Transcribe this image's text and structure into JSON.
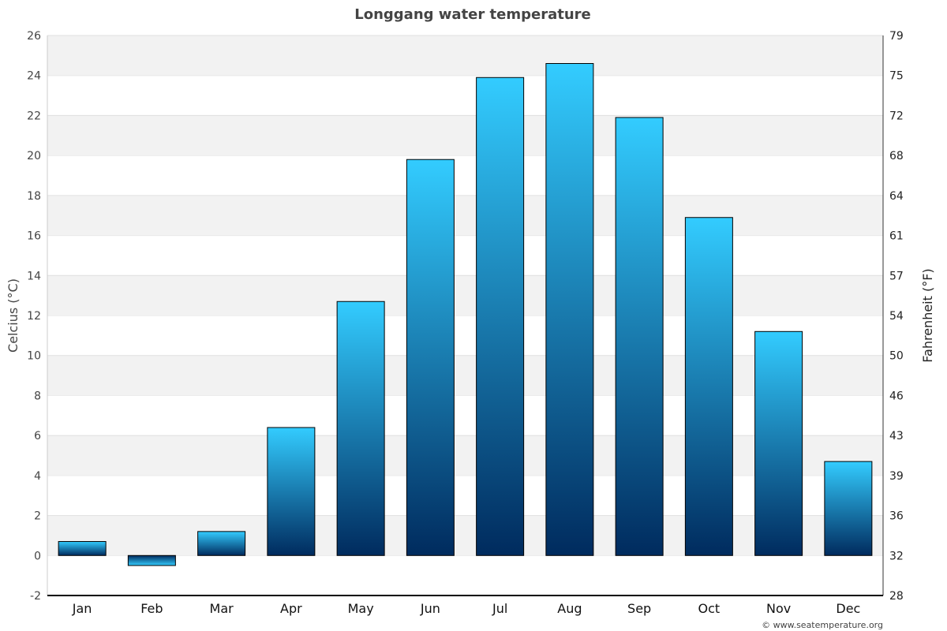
{
  "chart_data": {
    "type": "bar",
    "title": "Longgang water temperature",
    "ylabel": "Celcius (°C)",
    "y2label": "Fahrenheit (°F)",
    "ylim": [
      -2,
      26
    ],
    "yticks": [
      -2,
      0,
      2,
      4,
      6,
      8,
      10,
      12,
      14,
      16,
      18,
      20,
      22,
      24,
      26
    ],
    "y2ticks": [
      "28",
      "32",
      "36",
      "39",
      "43",
      "46",
      "50",
      "54",
      "57",
      "61",
      "64",
      "68",
      "72",
      "75",
      "79"
    ],
    "categories": [
      "Jan",
      "Feb",
      "Mar",
      "Apr",
      "May",
      "Jun",
      "Jul",
      "Aug",
      "Sep",
      "Oct",
      "Nov",
      "Dec"
    ],
    "values": [
      0.7,
      -0.5,
      1.2,
      6.4,
      12.7,
      19.8,
      23.9,
      24.6,
      21.9,
      16.9,
      11.2,
      4.7
    ],
    "grid": true,
    "colors": {
      "bar_top": "#33ccff",
      "bar_bottom": "#002b5e",
      "band": "#f2f2f2"
    }
  },
  "credit": "© www.seatemperature.org"
}
